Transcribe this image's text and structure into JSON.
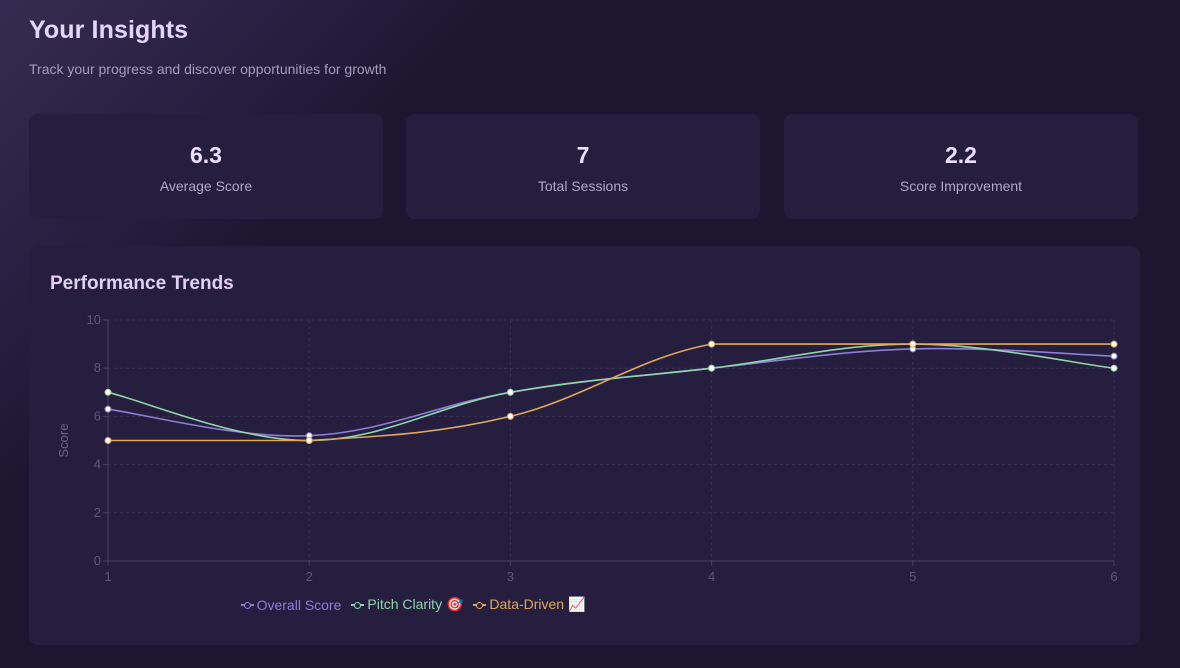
{
  "header": {
    "title": "Your Insights",
    "subtitle": "Track your progress and discover opportunities for growth"
  },
  "stats": [
    {
      "value": "6.3",
      "label": "Average Score"
    },
    {
      "value": "7",
      "label": "Total Sessions"
    },
    {
      "value": "2.2",
      "label": "Score Improvement"
    }
  ],
  "chart_card": {
    "title": "Performance Trends"
  },
  "chart_data": {
    "type": "line",
    "title": "Performance Trends",
    "xlabel": "",
    "ylabel": "Score",
    "x": [
      1,
      2,
      3,
      4,
      5,
      6
    ],
    "xlim": [
      1,
      6
    ],
    "ylim": [
      0,
      10
    ],
    "yticks": [
      0,
      2,
      4,
      6,
      8,
      10
    ],
    "grid": true,
    "legend": "bottom",
    "series": [
      {
        "name": "Overall Score",
        "color": "#8b7fd8",
        "values": [
          6.3,
          5.2,
          7.0,
          8.0,
          8.8,
          8.5
        ]
      },
      {
        "name": "Pitch Clarity 🎯",
        "color": "#8fd6a8",
        "values": [
          7.0,
          5.0,
          7.0,
          8.0,
          9.0,
          8.0
        ]
      },
      {
        "name": "Data-Driven 📈",
        "color": "#e0a85a",
        "values": [
          5.0,
          5.0,
          6.0,
          9.0,
          9.0,
          9.0
        ]
      }
    ]
  }
}
